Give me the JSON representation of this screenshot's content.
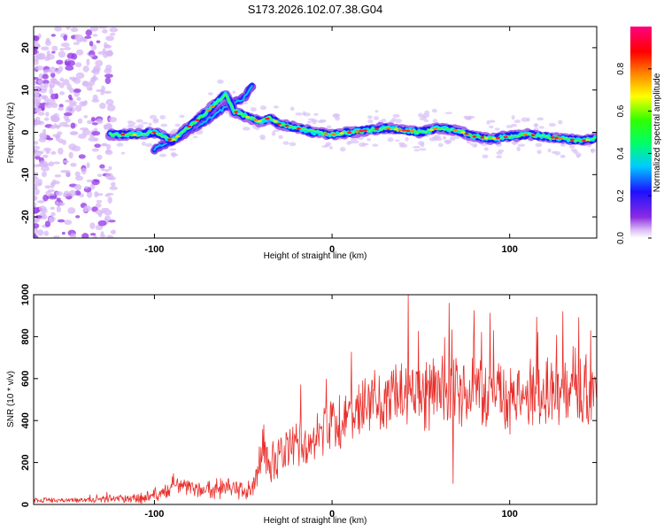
{
  "title": "S173.2026.102.07.38.G04",
  "chart_data": [
    {
      "type": "heatmap",
      "name": "spectrogram",
      "xlabel": "Height of straight line (km)",
      "ylabel": "Frequency (Hz)",
      "xlim": [
        -168,
        149
      ],
      "ylim": [
        -25,
        25
      ],
      "xticks": [
        -100,
        0,
        100
      ],
      "yticks": [
        -20,
        -10,
        0,
        10,
        20
      ],
      "colorbar": {
        "label": "Normalized spectral amplitude",
        "range": [
          0.0,
          1.0
        ],
        "ticks": [
          0.0,
          0.2,
          0.4,
          0.6,
          0.8
        ]
      },
      "ridge": {
        "x": [
          -125,
          -110,
          -100,
          -90,
          -80,
          -70,
          -60,
          -55,
          -50,
          -40,
          -35,
          -30,
          -20,
          -10,
          0,
          10,
          20,
          30,
          40,
          50,
          60,
          70,
          80,
          90,
          100,
          110,
          120,
          130,
          140,
          148
        ],
        "freq": [
          -0.5,
          -0.5,
          0.0,
          -2.0,
          1.5,
          5.0,
          9.0,
          5.0,
          4.0,
          2.5,
          3.5,
          2.0,
          1.0,
          0.0,
          -0.5,
          0.0,
          0.5,
          1.0,
          0.5,
          0.0,
          1.0,
          0.5,
          -1.0,
          -1.5,
          -1.0,
          -0.5,
          -1.0,
          -1.5,
          -2.0,
          -1.5
        ]
      },
      "secondary_ridge": {
        "x": [
          -100,
          -90,
          -80,
          -70,
          -60,
          -50,
          -45
        ],
        "freq": [
          -4.0,
          -2.0,
          0.5,
          3.0,
          6.0,
          8.0,
          11.0
        ]
      }
    },
    {
      "type": "line",
      "name": "snr",
      "xlabel": "Height of straight line (km)",
      "ylabel": "SNR (10 * v/v)",
      "xlim": [
        -168,
        149
      ],
      "ylim": [
        0,
        1000
      ],
      "xticks": [
        -100,
        0,
        100
      ],
      "yticks": [
        0,
        200,
        400,
        600,
        800,
        1000
      ],
      "color": "#e8302c",
      "envelope": {
        "x": [
          -168,
          -140,
          -110,
          -95,
          -90,
          -80,
          -60,
          -45,
          -40,
          -30,
          -20,
          -10,
          0,
          10,
          20,
          40,
          60,
          80,
          100,
          120,
          149
        ],
        "mean": [
          20,
          20,
          30,
          50,
          90,
          70,
          80,
          60,
          220,
          220,
          280,
          320,
          380,
          420,
          470,
          530,
          540,
          530,
          510,
          520,
          540
        ],
        "spread": [
          12,
          14,
          25,
          35,
          50,
          45,
          55,
          45,
          110,
          110,
          120,
          130,
          130,
          140,
          160,
          180,
          190,
          180,
          170,
          170,
          170
        ]
      },
      "spikes": [
        {
          "x": 43,
          "y": 1000
        },
        {
          "x": 66,
          "y": 960
        },
        {
          "x": 130,
          "y": 920
        },
        {
          "x": 84,
          "y": 820
        },
        {
          "x": 68,
          "y": 100
        }
      ]
    }
  ]
}
